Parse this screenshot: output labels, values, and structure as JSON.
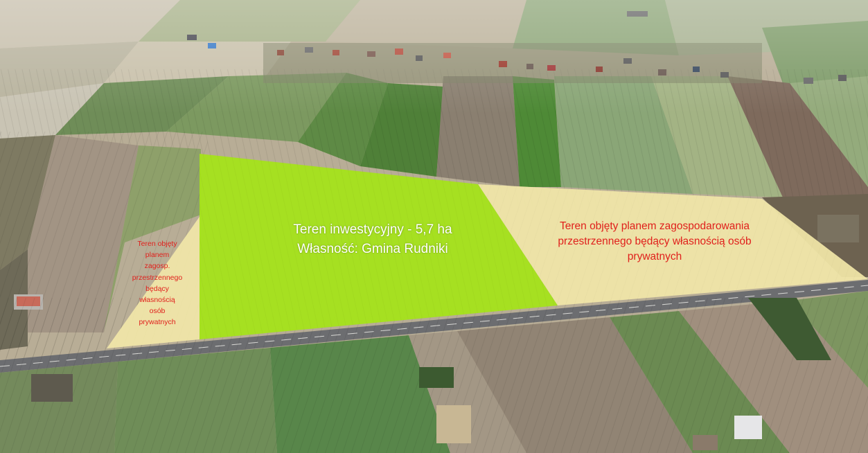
{
  "main_label": {
    "line1": "Teren inwestycyjny - 5,7 ha",
    "line2": "Własność: Gmina Rudniki"
  },
  "right_label": {
    "line1": "Teren objęty planem zagospodarowania",
    "line2": "przestrzennego będący własnością osób",
    "line3": "prywatnych"
  },
  "left_label": {
    "lines": [
      "Teren objęty",
      "planem",
      "zagosp.",
      "przestrzennego",
      "będący",
      "własnością",
      "osób",
      "prywatnych"
    ]
  },
  "colors": {
    "investment_area": "#a6e21c",
    "private_area": "#f1e6a8",
    "label_red": "#e0201c",
    "label_white": "#ffffff"
  }
}
